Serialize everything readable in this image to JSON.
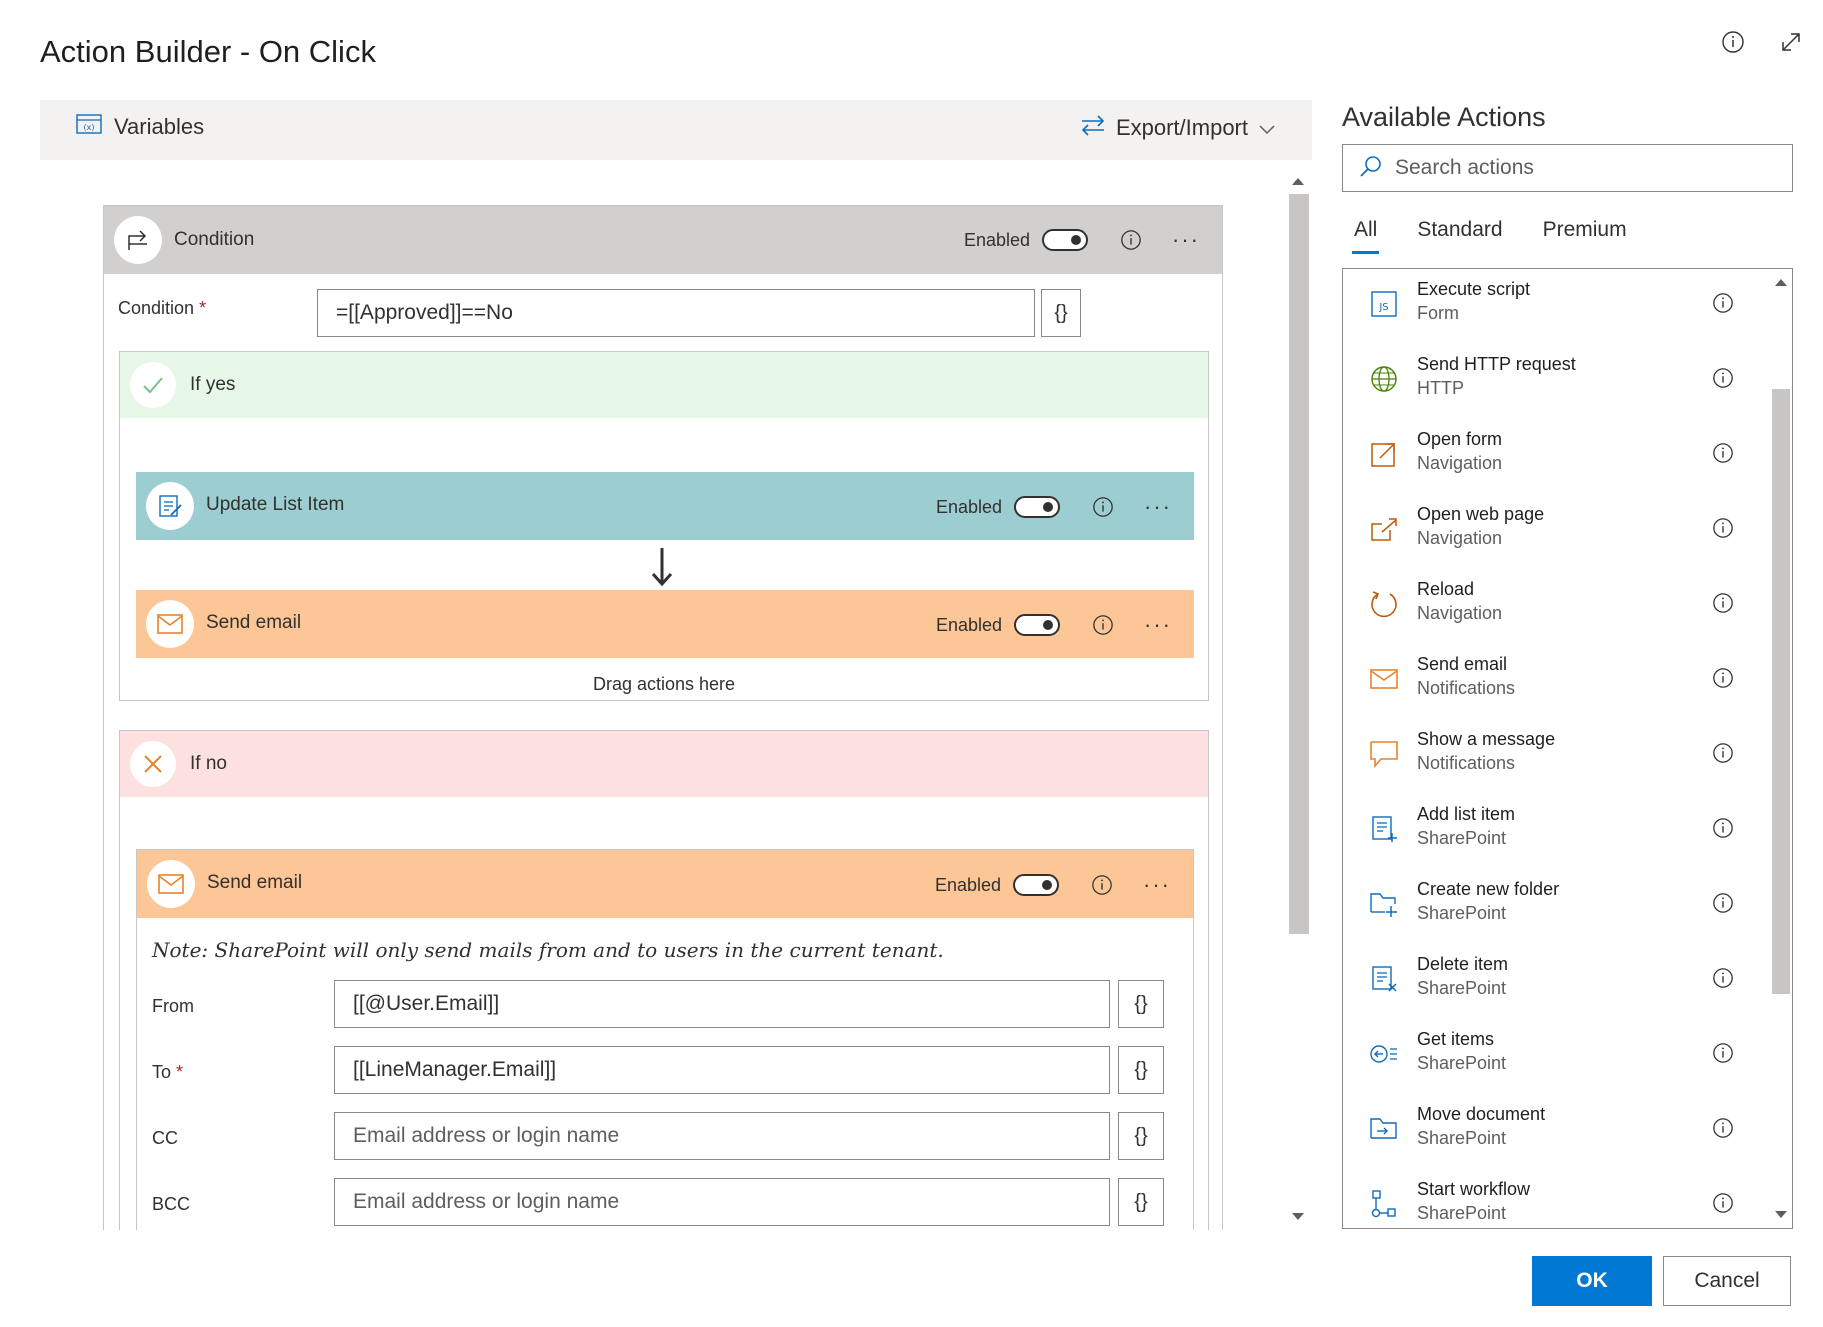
{
  "dialog": {
    "title": "Action Builder - On Click"
  },
  "toolbar": {
    "variables_label": "Variables",
    "export_label": "Export/Import"
  },
  "condition": {
    "header_title": "Condition",
    "enabled_label": "Enabled",
    "field_label": "Condition",
    "required_mark": "*",
    "value": "=[[Approved]]==No",
    "brace_label": "{}"
  },
  "if_yes": {
    "title": "If yes",
    "color": "#e6f7e7",
    "actions": [
      {
        "title": "Update List Item",
        "enabled_label": "Enabled",
        "color": "#9ccdd0"
      },
      {
        "title": "Send email",
        "enabled_label": "Enabled",
        "color": "#fcc696"
      }
    ],
    "drag_text": "Drag actions here"
  },
  "if_no": {
    "title": "If no",
    "color": "#fde0e0",
    "action": {
      "title": "Send email",
      "enabled_label": "Enabled",
      "color": "#fcc696",
      "note": "Note: SharePoint will only send mails from and to users in the current tenant.",
      "fields": [
        {
          "label": "From",
          "required": false,
          "value": "[[@User.Email]]",
          "placeholder": ""
        },
        {
          "label": "To",
          "required": true,
          "value": "[[LineManager.Email]]",
          "placeholder": ""
        },
        {
          "label": "CC",
          "required": false,
          "value": "",
          "placeholder": "Email address or login name"
        },
        {
          "label": "BCC",
          "required": false,
          "value": "",
          "placeholder": "Email address or login name"
        }
      ]
    }
  },
  "panel": {
    "title": "Available Actions",
    "search_placeholder": "Search actions",
    "tabs": [
      "All",
      "Standard",
      "Premium"
    ],
    "active_tab": "All",
    "actions": [
      {
        "name": "Execute script",
        "category": "Form",
        "icon": "js-script-icon"
      },
      {
        "name": "Send HTTP request",
        "category": "HTTP",
        "icon": "globe-icon"
      },
      {
        "name": "Open form",
        "category": "Navigation",
        "icon": "open-form-icon"
      },
      {
        "name": "Open web page",
        "category": "Navigation",
        "icon": "open-web-page-icon"
      },
      {
        "name": "Reload",
        "category": "Navigation",
        "icon": "reload-icon"
      },
      {
        "name": "Send email",
        "category": "Notifications",
        "icon": "mail-icon"
      },
      {
        "name": "Show a message",
        "category": "Notifications",
        "icon": "message-icon"
      },
      {
        "name": "Add list item",
        "category": "SharePoint",
        "icon": "add-list-item-icon"
      },
      {
        "name": "Create new folder",
        "category": "SharePoint",
        "icon": "new-folder-icon"
      },
      {
        "name": "Delete item",
        "category": "SharePoint",
        "icon": "delete-item-icon"
      },
      {
        "name": "Get items",
        "category": "SharePoint",
        "icon": "get-items-icon"
      },
      {
        "name": "Move document",
        "category": "SharePoint",
        "icon": "move-document-icon"
      },
      {
        "name": "Start workflow",
        "category": "SharePoint",
        "icon": "workflow-icon"
      }
    ]
  },
  "buttons": {
    "ok": "OK",
    "cancel": "Cancel"
  },
  "colors": {
    "accent": "#0078d4",
    "condition_header": "#d2d0ce",
    "mail_icon": "#e8832a",
    "share_icon": "#0f6cbd"
  }
}
